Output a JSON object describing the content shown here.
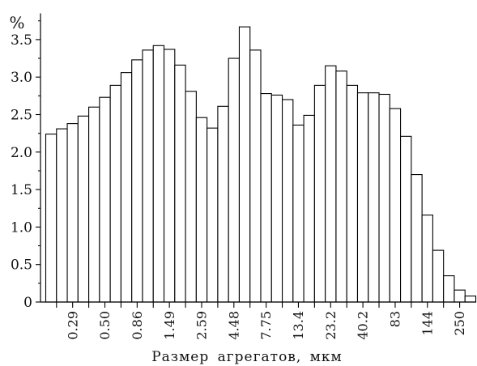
{
  "chart_data": {
    "type": "bar",
    "xlabel": "Размер агрегатов, мкм",
    "ylabel": "%",
    "categories": [
      "",
      "",
      "0.29",
      "",
      "",
      "0.50",
      "",
      "",
      "0.86",
      "",
      "",
      "1.49",
      "",
      "",
      "2.59",
      "",
      "",
      "4.48",
      "",
      "",
      "7.75",
      "",
      "",
      "13.4",
      "",
      "",
      "23.2",
      "",
      "",
      "40.2",
      "",
      "",
      "83",
      "",
      "",
      "144",
      "",
      "",
      "250",
      ""
    ],
    "values": [
      2.24,
      2.31,
      2.38,
      2.48,
      2.6,
      2.73,
      2.89,
      3.06,
      3.23,
      3.36,
      3.42,
      3.37,
      3.16,
      2.81,
      2.46,
      2.32,
      2.61,
      3.25,
      3.67,
      3.36,
      2.78,
      2.76,
      2.7,
      2.36,
      2.49,
      2.89,
      3.15,
      3.08,
      2.89,
      2.79,
      2.79,
      2.77,
      2.58,
      2.21,
      1.7,
      1.16,
      0.69,
      0.35,
      0.16,
      0.08
    ],
    "ylim": [
      0,
      3.85
    ],
    "y_ticks": [
      0,
      0.5,
      1.0,
      1.5,
      2.0,
      2.5,
      3.0,
      3.5
    ],
    "y_tick_labels": [
      "0",
      "0.5",
      "1.0",
      "1.5",
      "2.0",
      "2.5",
      "3.0",
      "3.5"
    ],
    "y_minor_tick_step": 0.25,
    "grid": false,
    "legend": false,
    "colors": {
      "bar_fill": "#ffffff",
      "bar_stroke": "#000000",
      "axis": "#000000",
      "text": "#111111"
    }
  }
}
